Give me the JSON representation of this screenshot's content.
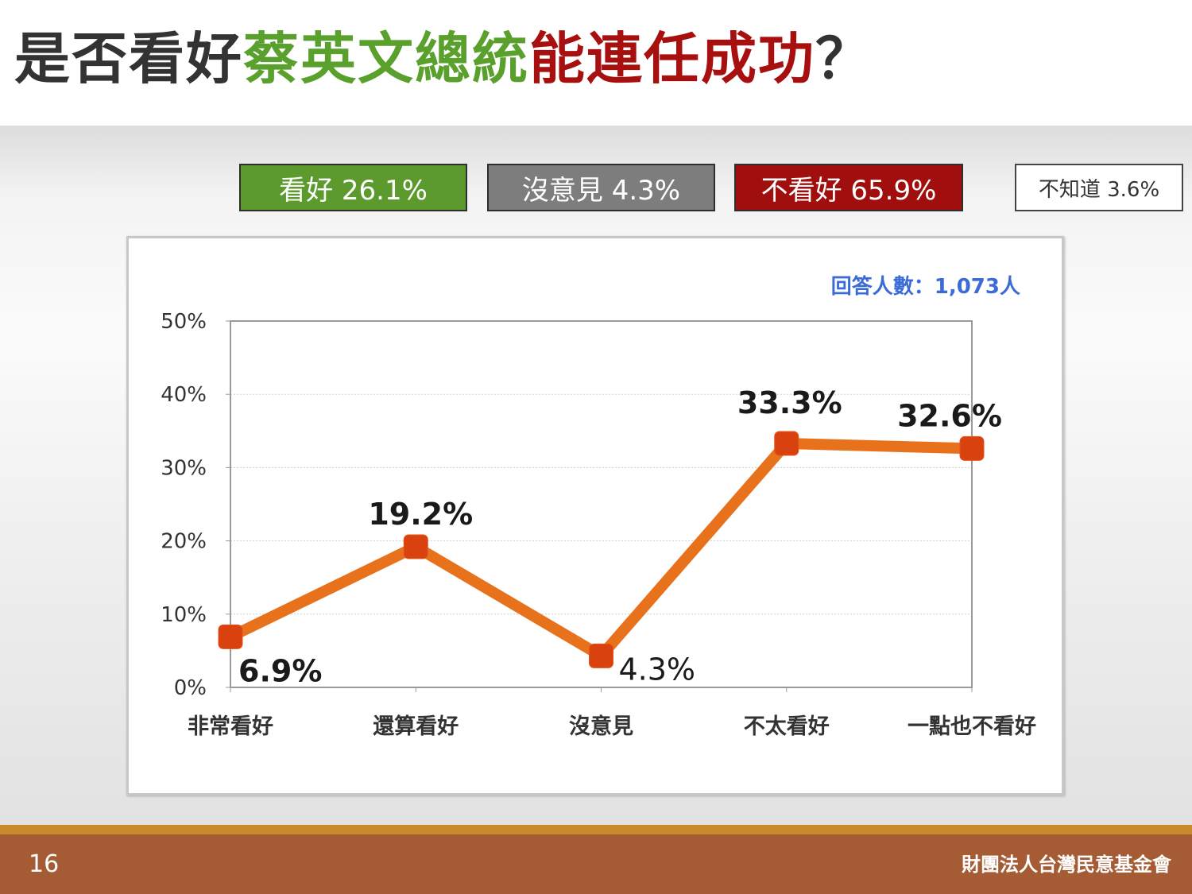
{
  "title": {
    "segments": [
      {
        "text": "是否看好",
        "color": "#333333"
      },
      {
        "text": "蔡英文總統",
        "color": "#5aa02c"
      },
      {
        "text": "能連任成功",
        "color": "#a80f0f"
      },
      {
        "text": "？",
        "color": "#333333"
      }
    ]
  },
  "summary": [
    {
      "label": "看好 26.1%",
      "bg": "#5c9a2e"
    },
    {
      "label": "沒意見 4.3%",
      "bg": "#7d7d7d"
    },
    {
      "label": "不看好 65.9%",
      "bg": "#a00e0e"
    },
    {
      "label": "不知道 3.6%",
      "bg": "#ffffff"
    }
  ],
  "respondents": "回答人數：1,073人",
  "chart_data": {
    "type": "line",
    "categories": [
      "非常看好",
      "還算看好",
      "沒意見",
      "不太看好",
      "一點也不看好"
    ],
    "values": [
      6.9,
      19.2,
      4.3,
      33.3,
      32.6
    ],
    "data_labels": [
      "6.9%",
      "19.2%",
      "4.3%",
      "33.3%",
      "32.6%"
    ],
    "y_ticks": [
      "0%",
      "10%",
      "20%",
      "30%",
      "40%",
      "50%"
    ],
    "ylim": [
      0,
      50
    ],
    "grid": true,
    "line_color": "#e8711c",
    "marker_color": "#d9420f"
  },
  "footer": {
    "page_number": "16",
    "organization": "財團法人台灣民意基金會"
  }
}
